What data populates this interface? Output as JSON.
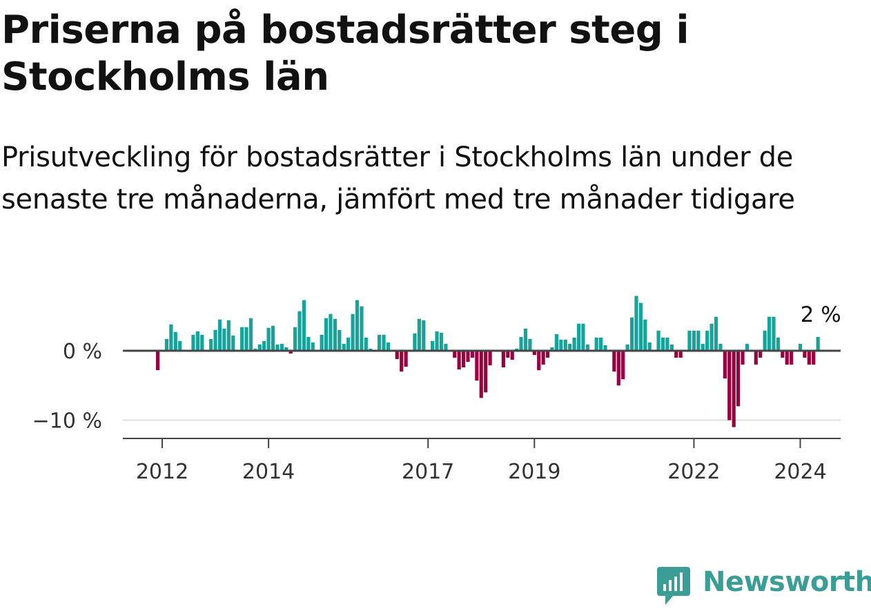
{
  "title": "Priserna på bostadsrätter steg i Stockholms län",
  "subtitle": "Prisutveckling för bostadsrätter i Stockholms län under de senaste tre månaderna, jämfört med tre månader tidigare",
  "brand": {
    "name": "Newsworthy",
    "color": "#3a9e96"
  },
  "chart_data": {
    "type": "bar",
    "title": "Priserna på bostadsrätter steg i Stockholms län",
    "subtitle": "Prisutveckling för bostadsrätter i Stockholms län under de senaste tre månaderna, jämfört med tre månader tidigare",
    "unit": "%",
    "start": "2011-12",
    "ylim": [
      -12,
      10
    ],
    "y_ticks": [
      {
        "value": 0,
        "label": "0 %"
      },
      {
        "value": -10,
        "label": "−10 %"
      }
    ],
    "x_ticks": [
      {
        "date": "2012-01",
        "label": "2012"
      },
      {
        "date": "2014-01",
        "label": "2014"
      },
      {
        "date": "2017-01",
        "label": "2017"
      },
      {
        "date": "2019-01",
        "label": "2019"
      },
      {
        "date": "2022-01",
        "label": "2022"
      },
      {
        "date": "2024-01",
        "label": "2024"
      }
    ],
    "colors": {
      "positive": "#15a39a",
      "negative": "#9a0040"
    },
    "last_value_label": "2 %",
    "values": [
      -2.8,
      0,
      1.7,
      3.8,
      2.7,
      1.4,
      0,
      0,
      2.3,
      2.8,
      2.3,
      0,
      1.7,
      3.0,
      4.5,
      3.2,
      4.4,
      2.2,
      0,
      3.4,
      3.4,
      4.7,
      0.3,
      0.9,
      1.4,
      3.3,
      3.6,
      0.9,
      1.0,
      0.5,
      -0.4,
      3.4,
      5.7,
      7.3,
      2.0,
      1.2,
      0,
      2.3,
      4.7,
      5.3,
      4.6,
      3.0,
      1.0,
      1.9,
      5.3,
      7.3,
      6.4,
      1.9,
      0.3,
      0,
      2.3,
      2.3,
      1.2,
      0,
      -1.2,
      -3.0,
      -2.3,
      0,
      2.5,
      4.6,
      4.4,
      0,
      1.4,
      2.8,
      2.6,
      1.0,
      0,
      -1.0,
      -2.7,
      -2.4,
      -1.6,
      -1.0,
      -4.3,
      -6.8,
      -6.0,
      -2.1,
      0,
      0,
      -2.4,
      -1.0,
      -1.3,
      0.3,
      2.0,
      3.2,
      1.7,
      -0.6,
      -2.8,
      -2.0,
      -1.0,
      0.5,
      2.4,
      1.6,
      1.6,
      1.0,
      1.9,
      3.9,
      3.9,
      0.9,
      0,
      1.9,
      1.9,
      0.8,
      0,
      -3.0,
      -5.0,
      -4.1,
      0.9,
      4.8,
      7.9,
      6.9,
      4.5,
      1.2,
      0,
      2.9,
      1.9,
      1.9,
      0.9,
      -1.0,
      -1.0,
      0,
      2.9,
      2.9,
      2.9,
      1.0,
      2.9,
      3.9,
      4.9,
      1.0,
      -4.0,
      -10.0,
      -11.0,
      -8.0,
      -2.0,
      1.0,
      0,
      -2.0,
      -1.0,
      2.9,
      4.9,
      4.9,
      1.9,
      -1.0,
      -2.0,
      -2.0,
      0,
      1.0,
      -1.0,
      -2.0,
      -2.0,
      2.0
    ]
  }
}
